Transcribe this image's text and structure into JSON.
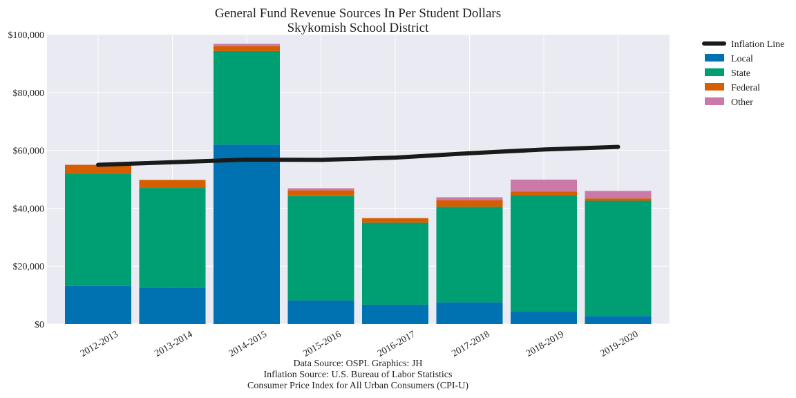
{
  "chart_data": {
    "type": "bar",
    "stacked": true,
    "title": "General Fund Revenue Sources In Per Student Dollars",
    "subtitle": "Skykomish School District",
    "categories": [
      "2012-2013",
      "2013-2014",
      "2014-2015",
      "2015-2016",
      "2016-2017",
      "2017-2018",
      "2018-2019",
      "2019-2020"
    ],
    "series": [
      {
        "name": "Local",
        "color": "#0072b2",
        "values": [
          13200,
          12500,
          62000,
          8200,
          6700,
          7500,
          4300,
          2800
        ]
      },
      {
        "name": "State",
        "color": "#009e73",
        "values": [
          38800,
          34500,
          32300,
          36000,
          28300,
          33000,
          40200,
          39800
        ]
      },
      {
        "name": "Federal",
        "color": "#d55e00",
        "values": [
          3000,
          2800,
          1700,
          2000,
          1600,
          2300,
          1200,
          800
        ]
      },
      {
        "name": "Other",
        "color": "#cc79a7",
        "values": [
          0,
          0,
          800,
          700,
          0,
          1000,
          4200,
          2600
        ]
      }
    ],
    "line": {
      "name": "Inflation Line",
      "color": "#1a1a1a",
      "values": [
        55000,
        55900,
        56800,
        56700,
        57500,
        59000,
        60300,
        61200
      ]
    },
    "ylim": [
      0,
      100000
    ],
    "yticks": [
      0,
      20000,
      40000,
      60000,
      80000,
      100000
    ],
    "ytick_labels": [
      "$0",
      "$20,000",
      "$40,000",
      "$60,000",
      "$80,000",
      "$100,000"
    ],
    "grid": true,
    "legend": "outside-top-right",
    "xlabel": "",
    "ylabel": ""
  },
  "caption": [
    "Data Source: OSPI. Graphics: JH",
    "Inflation Source: U.S. Bureau of Labor Statistics",
    "Consumer Price Index for All Urban Consumers (CPI-U)"
  ]
}
